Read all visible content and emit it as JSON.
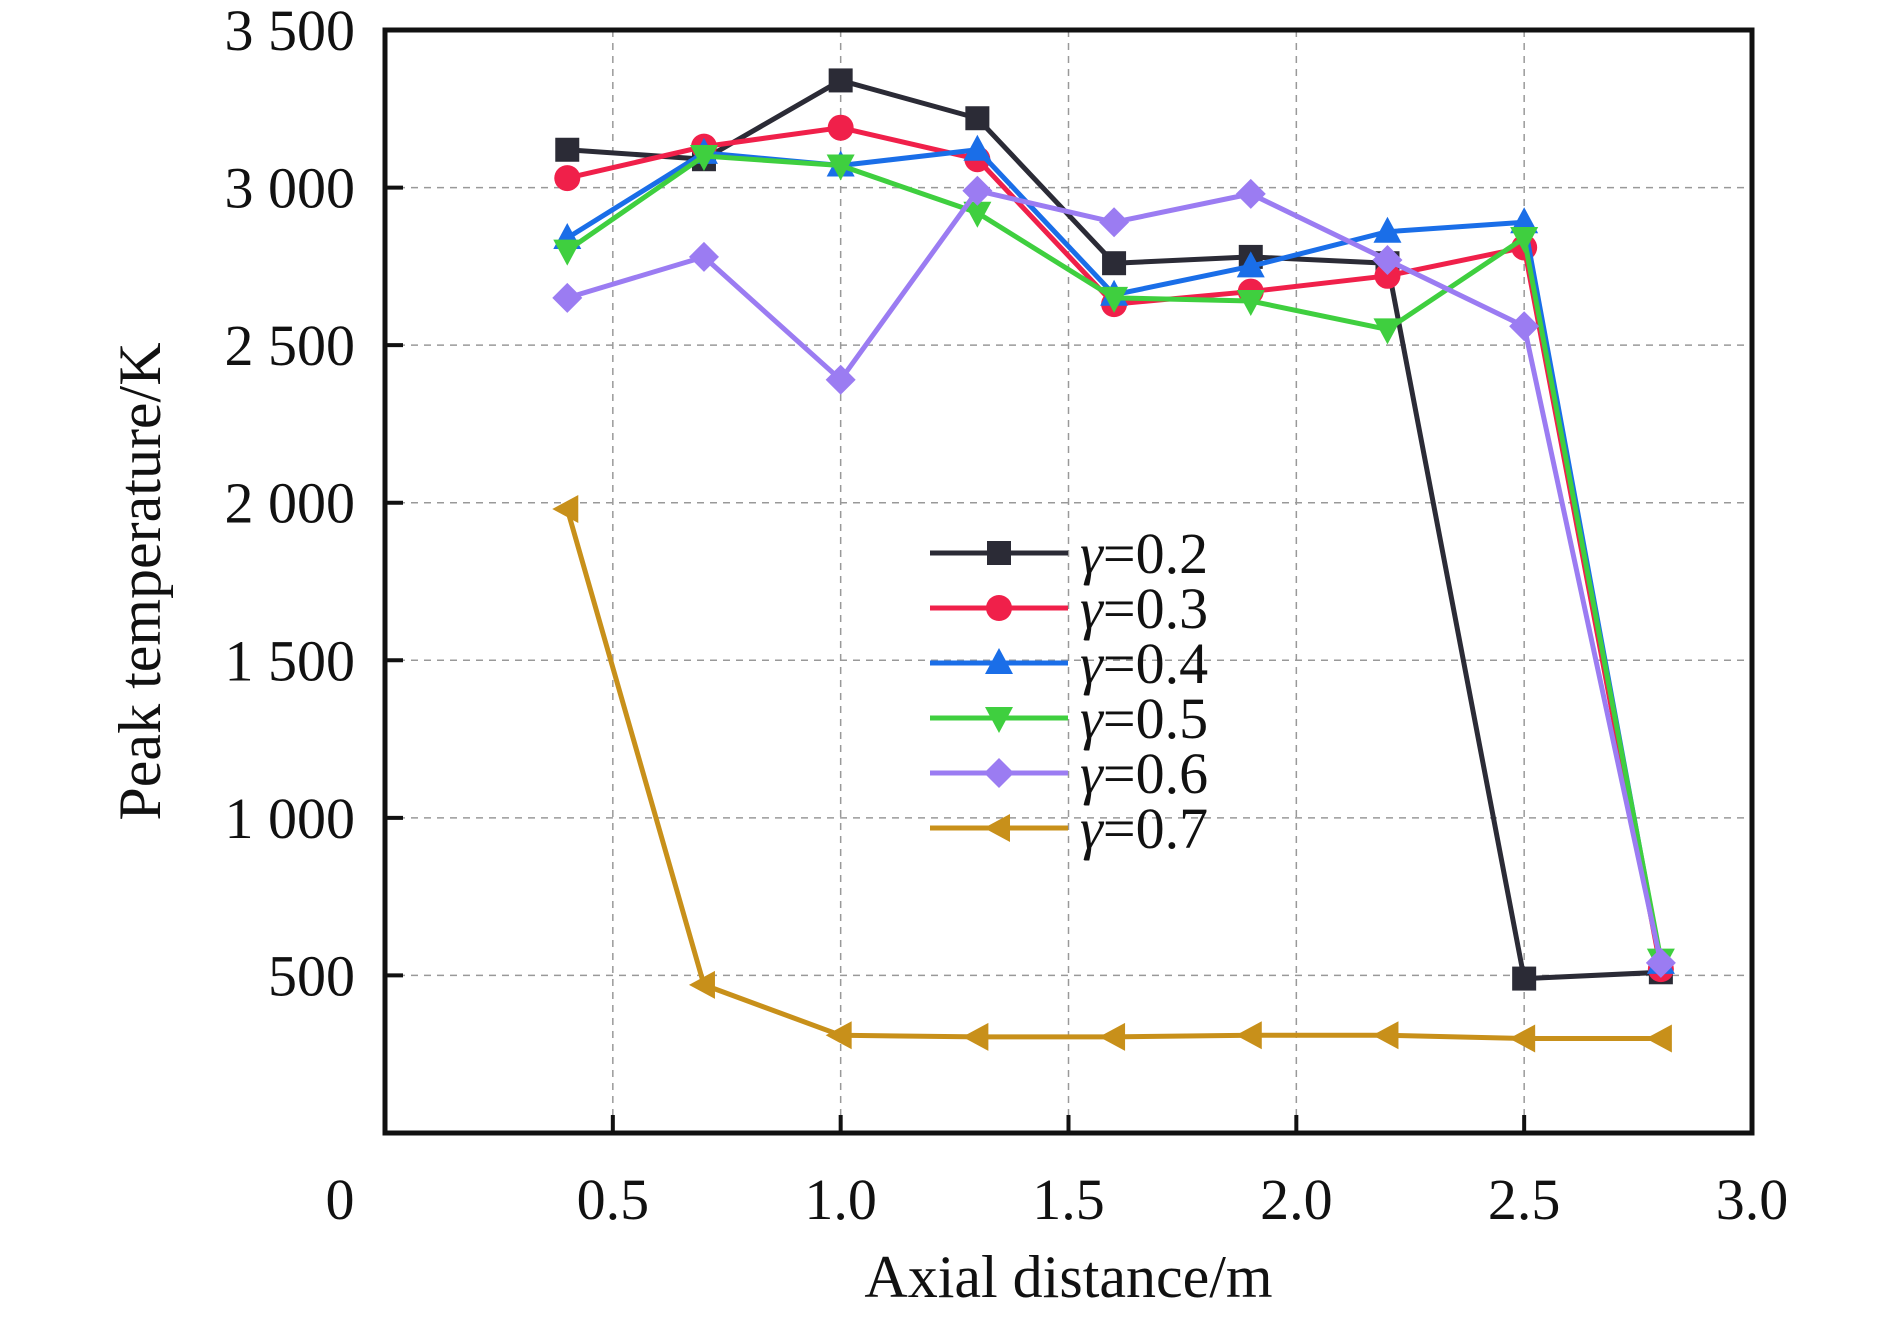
{
  "chart_data": {
    "type": "line",
    "xlabel": "Axial distance/m",
    "ylabel": "Peak temperature/K",
    "xlim": [
      0,
      3.0
    ],
    "ylim": [
      0,
      3500
    ],
    "x_ticks": [
      0.5,
      1.0,
      1.5,
      2.0,
      2.5,
      3.0
    ],
    "x_tick_labels": [
      "0.5",
      "1.0",
      "1.5",
      "2.0",
      "2.5",
      "3.0"
    ],
    "y_ticks": [
      500,
      1000,
      1500,
      2000,
      2500,
      3000,
      3500
    ],
    "y_tick_labels": [
      "500",
      "1 000",
      "1 500",
      "2 000",
      "2 500",
      "3 000",
      "3 500"
    ],
    "origin_label": "0",
    "grid": true,
    "legend_position": "center",
    "x": [
      0.4,
      0.7,
      1.0,
      1.3,
      1.6,
      1.9,
      2.2,
      2.5,
      2.8
    ],
    "series": [
      {
        "name": "γ=0.2",
        "color": "#2b2b36",
        "marker": "square",
        "values": [
          3120,
          3090,
          3340,
          3220,
          2760,
          2780,
          2760,
          490,
          510
        ]
      },
      {
        "name": "γ=0.3",
        "color": "#f0204a",
        "marker": "circle",
        "values": [
          3030,
          3130,
          3190,
          3090,
          2630,
          2670,
          2720,
          2810,
          520
        ]
      },
      {
        "name": "γ=0.4",
        "color": "#1a6ee8",
        "marker": "triangle-up",
        "values": [
          2840,
          3110,
          3070,
          3120,
          2660,
          2750,
          2860,
          2890,
          540
        ]
      },
      {
        "name": "γ=0.5",
        "color": "#3fcf3f",
        "marker": "triangle-down",
        "values": [
          2800,
          3100,
          3070,
          2920,
          2650,
          2640,
          2550,
          2840,
          550
        ]
      },
      {
        "name": "γ=0.6",
        "color": "#9b7cf2",
        "marker": "diamond",
        "values": [
          2650,
          2780,
          2390,
          2990,
          2890,
          2980,
          2770,
          2560,
          540
        ]
      },
      {
        "name": "γ=0.7",
        "color": "#c8901a",
        "marker": "triangle-left",
        "values": [
          1980,
          470,
          310,
          305,
          305,
          310,
          310,
          300,
          300
        ]
      }
    ]
  }
}
